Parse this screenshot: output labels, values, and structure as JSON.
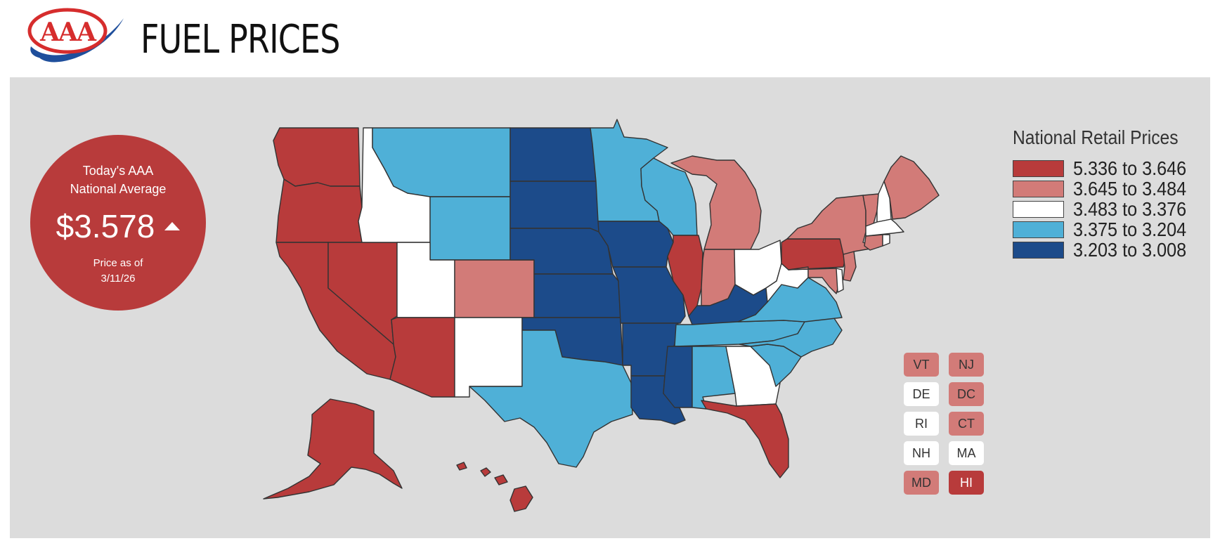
{
  "header": {
    "logo_text": "AAA",
    "title": "FUEL PRICES"
  },
  "national_average": {
    "label_line1": "Today's AAA",
    "label_line2": "National Average",
    "price": "$3.578",
    "trend": "up",
    "asof_line1": "Price as of",
    "asof_line2": "3/11/26"
  },
  "legend": {
    "title": "National Retail Prices",
    "items": [
      {
        "label": "5.336 to 3.646",
        "color": "#b83b3b"
      },
      {
        "label": "3.645 to 3.484",
        "color": "#d27b78"
      },
      {
        "label": "3.483 to 3.376",
        "color": "#ffffff"
      },
      {
        "label": "3.375 to 3.204",
        "color": "#4fb0d7"
      },
      {
        "label": "3.203 to 3.008",
        "color": "#1c4b8a"
      }
    ]
  },
  "states": {
    "WA": 0,
    "OR": 0,
    "CA": 0,
    "NV": 0,
    "AZ": 0,
    "IL": 0,
    "PA": 0,
    "FL": 0,
    "AK": 0,
    "HI": 0,
    "MI": 1,
    "IN": 1,
    "NY": 1,
    "ME": 1,
    "CO": 1,
    "MD": 1,
    "NJ": 1,
    "VT": 1,
    "DC": 1,
    "CT": 1,
    "ID": 2,
    "UT": 2,
    "NM": 2,
    "OH": 2,
    "WV": 2,
    "GA": 2,
    "NH": 2,
    "MA": 2,
    "DE": 2,
    "RI": 2,
    "MT": 3,
    "WY": 3,
    "MN": 3,
    "WI": 3,
    "TX": 3,
    "TN": 3,
    "VA": 3,
    "NC": 3,
    "SC": 3,
    "AL": 3,
    "ND": 4,
    "SD": 4,
    "NE": 4,
    "KS": 4,
    "OK": 4,
    "IA": 4,
    "MO": 4,
    "AR": 4,
    "LA": 4,
    "MS": 4,
    "KY": 4
  },
  "small_states": [
    {
      "abbr": "VT",
      "tier": 1
    },
    {
      "abbr": "NJ",
      "tier": 1
    },
    {
      "abbr": "DE",
      "tier": 2
    },
    {
      "abbr": "DC",
      "tier": 1
    },
    {
      "abbr": "RI",
      "tier": 2
    },
    {
      "abbr": "CT",
      "tier": 1
    },
    {
      "abbr": "NH",
      "tier": 2
    },
    {
      "abbr": "MA",
      "tier": 2
    },
    {
      "abbr": "MD",
      "tier": 1
    },
    {
      "abbr": "HI",
      "tier": 0
    }
  ]
}
